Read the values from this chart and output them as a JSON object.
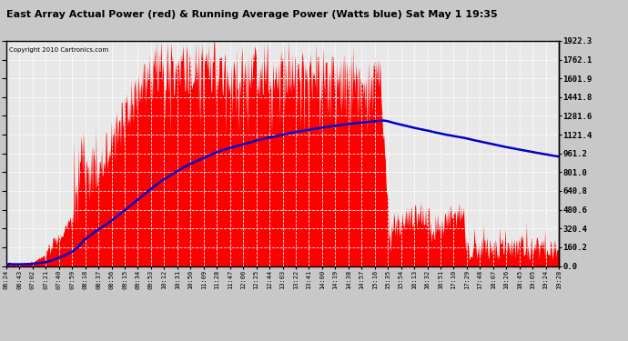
{
  "title": "East Array Actual Power (red) & Running Average Power (Watts blue) Sat May 1 19:35",
  "copyright": "Copyright 2010 Cartronics.com",
  "ylabel_right_values": [
    0.0,
    160.2,
    320.4,
    480.6,
    640.8,
    801.0,
    961.2,
    1121.4,
    1281.6,
    1441.8,
    1601.9,
    1762.1,
    1922.3
  ],
  "ymax": 1922.3,
  "ymin": 0.0,
  "actual_color": "#FF0000",
  "average_color": "#0000CC",
  "background_color": "#C8C8C8",
  "plot_bg_color": "#E8E8E8",
  "grid_color": "#FFFFFF",
  "x_labels": [
    "06:24",
    "06:43",
    "07:02",
    "07:21",
    "07:40",
    "07:59",
    "08:18",
    "08:37",
    "08:56",
    "09:15",
    "09:34",
    "09:53",
    "10:12",
    "10:31",
    "10:50",
    "11:09",
    "11:28",
    "11:47",
    "12:06",
    "12:25",
    "12:44",
    "13:03",
    "13:22",
    "13:41",
    "14:00",
    "14:19",
    "14:38",
    "14:57",
    "15:16",
    "15:35",
    "15:54",
    "16:13",
    "16:32",
    "16:51",
    "17:10",
    "17:29",
    "17:48",
    "18:07",
    "18:26",
    "18:45",
    "19:05",
    "19:24",
    "19:28"
  ],
  "figsize": [
    6.9,
    3.75
  ],
  "dpi": 100
}
